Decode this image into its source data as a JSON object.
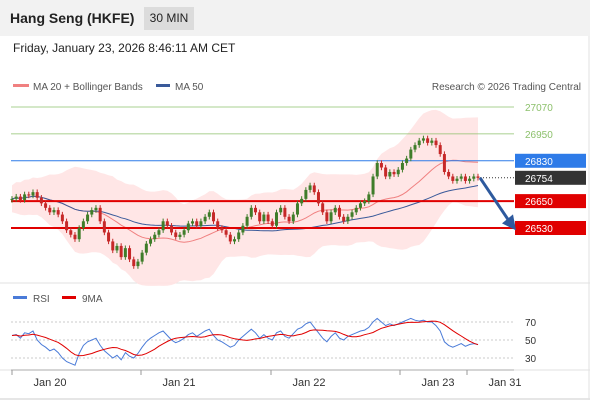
{
  "header": {
    "title": "Hang Seng (HKFE)",
    "interval": "30 MIN"
  },
  "datetime": "Friday, January 23, 2026 8:46:11 AM CET",
  "legend": {
    "ma20_label": "MA 20 + Bollinger Bands",
    "ma50_label": "MA 50",
    "rsi_label": "RSI",
    "ma9_label": "9MA",
    "credit": "Research © 2026 Trading Central"
  },
  "colors": {
    "ma20": "#f08080",
    "ma50": "#3a5a9a",
    "bollinger": "#ffe3e3",
    "resistance": "#8cc06b",
    "support": "#e00000",
    "pivot": "#2e7be8",
    "last": "#333333",
    "arrow": "#2e5a9e",
    "rsi": "#4a7bd8",
    "candle_up": "#3f7d2a",
    "candle_down": "#c62828"
  },
  "levels": [
    {
      "value": "27070",
      "kind": "resistance"
    },
    {
      "value": "26950",
      "kind": "resistance"
    },
    {
      "value": "26830",
      "kind": "pivot"
    },
    {
      "value": "26754",
      "kind": "last"
    },
    {
      "value": "26650",
      "kind": "support"
    },
    {
      "value": "26530",
      "kind": "support"
    }
  ],
  "rsi_ticks": [
    "70",
    "50",
    "30"
  ],
  "x_ticks": [
    "Jan 20",
    "Jan 21",
    "Jan 22",
    "Jan 23",
    "Jan 31"
  ],
  "chart_data": {
    "type": "candlestick",
    "price_scale": {
      "levels": [
        27070,
        26950,
        26830,
        26754,
        26650,
        26530
      ]
    },
    "last_price": 26754,
    "pivot": 26830,
    "supports": [
      26650,
      26530
    ],
    "resistances": [
      26950,
      27070
    ],
    "rsi_levels": [
      70,
      50,
      30
    ],
    "x_labels": [
      "Jan 20",
      "Jan 21",
      "Jan 22",
      "Jan 23",
      "Jan 31"
    ],
    "close_series": [
      26660,
      26670,
      26655,
      26680,
      26675,
      26690,
      26665,
      26640,
      26620,
      26600,
      26610,
      26590,
      26560,
      26520,
      26500,
      26480,
      26530,
      26560,
      26590,
      26610,
      26620,
      26560,
      26510,
      26470,
      26430,
      26450,
      26400,
      26440,
      26390,
      26360,
      26380,
      26420,
      26460,
      26480,
      26500,
      26520,
      26560,
      26540,
      26510,
      26490,
      26500,
      26520,
      26550,
      26560,
      26540,
      26560,
      26580,
      26600,
      26560,
      26530,
      26520,
      26500,
      26470,
      26480,
      26510,
      26540,
      26580,
      26620,
      26600,
      26560,
      26590,
      26560,
      26540,
      26600,
      26620,
      26580,
      26560,
      26590,
      26640,
      26660,
      26700,
      26720,
      26690,
      26640,
      26600,
      26560,
      26600,
      26620,
      26580,
      26560,
      26580,
      26600,
      26620,
      26640,
      26650,
      26680,
      26760,
      26820,
      26800,
      26760,
      26780,
      26770,
      26790,
      26820,
      26840,
      26880,
      26900,
      26920,
      26930,
      26910,
      26920,
      26900,
      26860,
      26780,
      26760,
      26740,
      26750,
      26760,
      26740,
      26750,
      26760,
      26754
    ],
    "rsi_series": [
      55,
      56,
      52,
      58,
      57,
      60,
      50,
      45,
      42,
      38,
      40,
      36,
      30,
      26,
      24,
      22,
      35,
      44,
      48,
      50,
      52,
      44,
      38,
      34,
      30,
      33,
      28,
      36,
      32,
      30,
      35,
      42,
      48,
      52,
      55,
      58,
      60,
      55,
      50,
      47,
      49,
      52,
      56,
      58,
      54,
      57,
      60,
      62,
      55,
      50,
      48,
      45,
      42,
      44,
      50,
      54,
      58,
      62,
      58,
      52,
      56,
      52,
      50,
      58,
      60,
      54,
      52,
      57,
      62,
      64,
      68,
      70,
      64,
      58,
      52,
      48,
      54,
      58,
      52,
      50,
      54,
      56,
      58,
      60,
      61,
      64,
      70,
      74,
      70,
      66,
      68,
      66,
      68,
      70,
      72,
      74,
      72,
      71,
      72,
      70,
      70,
      66,
      60,
      48,
      44,
      42,
      44,
      46,
      43,
      45,
      46,
      45
    ]
  }
}
